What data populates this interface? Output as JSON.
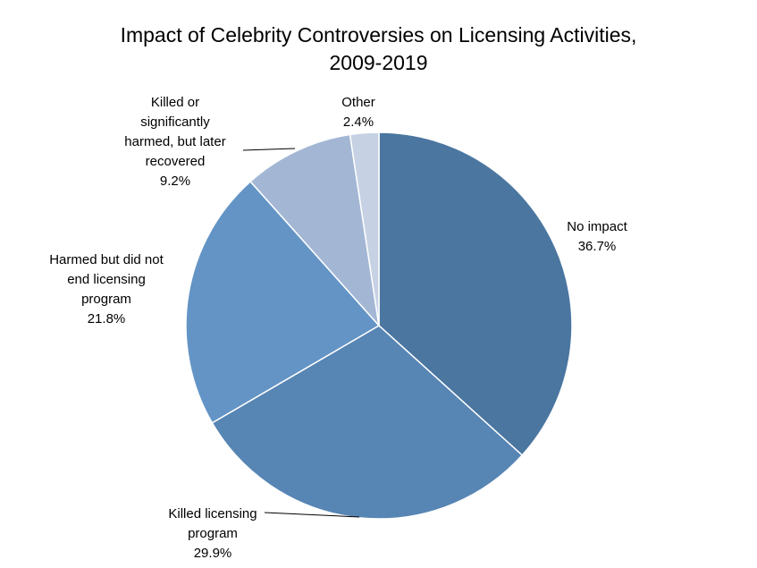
{
  "chart_data": {
    "type": "pie",
    "title": "Impact of Celebrity Controversies on Licensing Activities, 2009-2019",
    "title_lines": [
      "Impact of Celebrity Controversies on Licensing Activities,",
      "2009-2019"
    ],
    "slices": [
      {
        "label": "No impact",
        "label_lines": [
          "No impact"
        ],
        "value": 36.7,
        "value_text": "36.7%",
        "color": "#4a76a0"
      },
      {
        "label": "Killed licensing program",
        "label_lines": [
          "Killed licensing",
          "program"
        ],
        "value": 29.9,
        "value_text": "29.9%",
        "color": "#5785b4"
      },
      {
        "label": "Harmed but did not end licensing program",
        "label_lines": [
          "Harmed but did not",
          "end licensing",
          "program"
        ],
        "value": 21.8,
        "value_text": "21.8%",
        "color": "#6394c5"
      },
      {
        "label": "Killed or significantly harmed, but later recovered",
        "label_lines": [
          "Killed or",
          "significantly",
          "harmed, but later",
          "recovered"
        ],
        "value": 9.2,
        "value_text": "9.2%",
        "color": "#a3b7d5"
      },
      {
        "label": "Other",
        "label_lines": [
          "Other"
        ],
        "value": 2.4,
        "value_text": "2.4%",
        "color": "#c6d2e4"
      }
    ],
    "legend": "none"
  }
}
